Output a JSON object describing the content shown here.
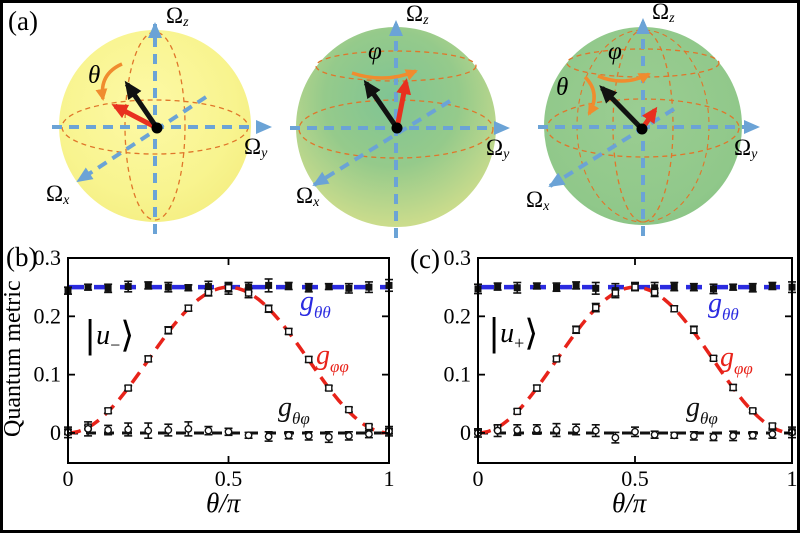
{
  "panel_a": {
    "label": "(a)",
    "axis_labels": {
      "z": {
        "base": "Ω",
        "sub": "z"
      },
      "y": {
        "base": "Ω",
        "sub": "y"
      },
      "x": {
        "base": "Ω",
        "sub": "x"
      }
    },
    "angle_theta": "θ",
    "angle_phi": "φ",
    "colors": {
      "axis_blue": "#6ba3d6",
      "orbit_orange": "#e0762a",
      "arrow_orange": "#f08c2e",
      "state_arrow_black": "#111111",
      "state_arrow_red": "#e8301f",
      "sphere_yellow": "#f8f48f",
      "sphere_green_center": "#7fc494",
      "sphere_green_edge": "#d9e48d",
      "sphere_green_flat": "#90c88a"
    }
  },
  "chart_data": [
    {
      "type": "line",
      "panel_label": "(b)",
      "state": {
        "pre": "|",
        "letter": "u",
        "sub": "−",
        "post": "⟩"
      },
      "ylabel": "Quantum metric",
      "xlabel": "θ/π",
      "xlim": [
        0,
        1
      ],
      "ylim": [
        -0.0515,
        0.3
      ],
      "grid": false,
      "legend_position": "inside-right",
      "xticks": [
        {
          "v": 0,
          "label": "0"
        },
        {
          "v": 0.5,
          "label": "0.5"
        },
        {
          "v": 1,
          "label": "1"
        }
      ],
      "yticks": [
        {
          "v": 0,
          "label": "0"
        },
        {
          "v": 0.1,
          "label": "0.1"
        },
        {
          "v": 0.2,
          "label": "0.2"
        },
        {
          "v": 0.3,
          "label": "0.3"
        }
      ],
      "x": [
        0,
        0.0625,
        0.125,
        0.1875,
        0.25,
        0.3125,
        0.375,
        0.4375,
        0.5,
        0.5625,
        0.625,
        0.6875,
        0.75,
        0.8125,
        0.875,
        0.9375,
        1
      ],
      "series": [
        {
          "name": "g_thetatheta",
          "label_base": "g",
          "label_sub": "θθ",
          "color": "#2b2be0",
          "theory": {
            "kind": "const",
            "value": 0.25
          },
          "line": {
            "width": 4.5,
            "dash": "16 10"
          },
          "marker": "filled-square",
          "y": [
            0.244,
            0.25,
            0.248,
            0.251,
            0.253,
            0.25,
            0.249,
            0.251,
            0.248,
            0.25,
            0.253,
            0.252,
            0.249,
            0.251,
            0.248,
            0.25,
            0.253
          ],
          "err": [
            0.006,
            0.005,
            0.007,
            0.009,
            0.006,
            0.008,
            0.005,
            0.009,
            0.01,
            0.008,
            0.011,
            0.006,
            0.007,
            0.005,
            0.008,
            0.009,
            0.01
          ]
        },
        {
          "name": "g_phiphi",
          "label_base": "g",
          "label_sub": "φφ",
          "color": "#e8231a",
          "theory": {
            "kind": "sin2",
            "amp": 0.25
          },
          "line": {
            "width": 3.5,
            "dash": "13 8"
          },
          "marker": "open-square",
          "y": [
            0.002,
            0.01,
            0.038,
            0.077,
            0.127,
            0.176,
            0.214,
            0.241,
            0.249,
            0.24,
            0.213,
            0.174,
            0.126,
            0.077,
            0.04,
            0.011,
            0.003
          ],
          "err": [
            0.004,
            0.003,
            0.004,
            0.004,
            0.005,
            0.006,
            0.005,
            0.006,
            0.007,
            0.008,
            0.006,
            0.005,
            0.005,
            0.004,
            0.004,
            0.003,
            0.004
          ]
        },
        {
          "name": "g_thetaphi",
          "label_base": "g",
          "label_sub": "θφ",
          "color": "#111111",
          "theory": {
            "kind": "const",
            "value": 0
          },
          "line": {
            "width": 3,
            "dash": "10 8"
          },
          "marker": "open-circle",
          "y": [
            0.001,
            0.007,
            0.005,
            0.006,
            0.004,
            0.005,
            0.007,
            0.004,
            0.002,
            -0.004,
            -0.006,
            -0.004,
            -0.005,
            -0.007,
            -0.005,
            -0.002,
            0.003
          ],
          "err": [
            0.009,
            0.012,
            0.008,
            0.011,
            0.013,
            0.01,
            0.012,
            0.007,
            0.006,
            0.005,
            0.008,
            0.006,
            0.007,
            0.009,
            0.007,
            0.006,
            0.008
          ]
        }
      ]
    },
    {
      "type": "line",
      "panel_label": "(c)",
      "state": {
        "pre": "|",
        "letter": "u",
        "sub": "+",
        "post": "⟩"
      },
      "ylabel": "",
      "xlabel": "θ/π",
      "xlim": [
        0,
        1
      ],
      "ylim": [
        -0.0515,
        0.3
      ],
      "grid": false,
      "legend_position": "inside-right",
      "xticks": [
        {
          "v": 0,
          "label": "0"
        },
        {
          "v": 0.5,
          "label": "0.5"
        },
        {
          "v": 1,
          "label": "1"
        }
      ],
      "yticks": [
        {
          "v": 0,
          "label": "0"
        },
        {
          "v": 0.1,
          "label": "0.1"
        },
        {
          "v": 0.2,
          "label": "0.2"
        },
        {
          "v": 0.3,
          "label": "0.3"
        }
      ],
      "x": [
        0,
        0.0625,
        0.125,
        0.1875,
        0.25,
        0.3125,
        0.375,
        0.4375,
        0.5,
        0.5625,
        0.625,
        0.6875,
        0.75,
        0.8125,
        0.875,
        0.9375,
        1
      ],
      "series": [
        {
          "name": "g_thetatheta",
          "label_base": "g",
          "label_sub": "θθ",
          "color": "#2b2be0",
          "theory": {
            "kind": "const",
            "value": 0.25
          },
          "line": {
            "width": 4.5,
            "dash": "16 10"
          },
          "marker": "filled-square",
          "y": [
            0.247,
            0.251,
            0.249,
            0.252,
            0.25,
            0.253,
            0.248,
            0.244,
            0.252,
            0.249,
            0.251,
            0.25,
            0.247,
            0.25,
            0.249,
            0.252,
            0.25
          ],
          "err": [
            0.008,
            0.006,
            0.009,
            0.005,
            0.007,
            0.006,
            0.01,
            0.012,
            0.006,
            0.009,
            0.007,
            0.006,
            0.008,
            0.005,
            0.007,
            0.006,
            0.009
          ]
        },
        {
          "name": "g_phiphi",
          "label_base": "g",
          "label_sub": "φφ",
          "color": "#e8231a",
          "theory": {
            "kind": "sin2",
            "amp": 0.25
          },
          "line": {
            "width": 3.5,
            "dash": "13 8"
          },
          "marker": "open-square",
          "y": [
            0.002,
            0.009,
            0.037,
            0.077,
            0.127,
            0.177,
            0.215,
            0.24,
            0.25,
            0.241,
            0.213,
            0.177,
            0.128,
            0.078,
            0.038,
            0.012,
            0.002
          ],
          "err": [
            0.003,
            0.004,
            0.004,
            0.005,
            0.004,
            0.006,
            0.007,
            0.005,
            0.006,
            0.007,
            0.005,
            0.006,
            0.004,
            0.005,
            0.003,
            0.004,
            0.003
          ]
        },
        {
          "name": "g_thetaphi",
          "label_base": "g",
          "label_sub": "θφ",
          "color": "#111111",
          "theory": {
            "kind": "const",
            "value": 0
          },
          "line": {
            "width": 3,
            "dash": "10 8"
          },
          "marker": "open-circle",
          "y": [
            0.0,
            0.004,
            0.005,
            0.006,
            0.005,
            0.006,
            0.004,
            -0.008,
            0.002,
            -0.003,
            -0.004,
            -0.005,
            -0.007,
            -0.005,
            -0.004,
            -0.002,
            0.001
          ],
          "err": [
            0.007,
            0.01,
            0.009,
            0.008,
            0.011,
            0.009,
            0.01,
            0.009,
            0.008,
            0.006,
            0.005,
            0.007,
            0.006,
            0.008,
            0.006,
            0.007,
            0.009
          ]
        }
      ]
    }
  ]
}
